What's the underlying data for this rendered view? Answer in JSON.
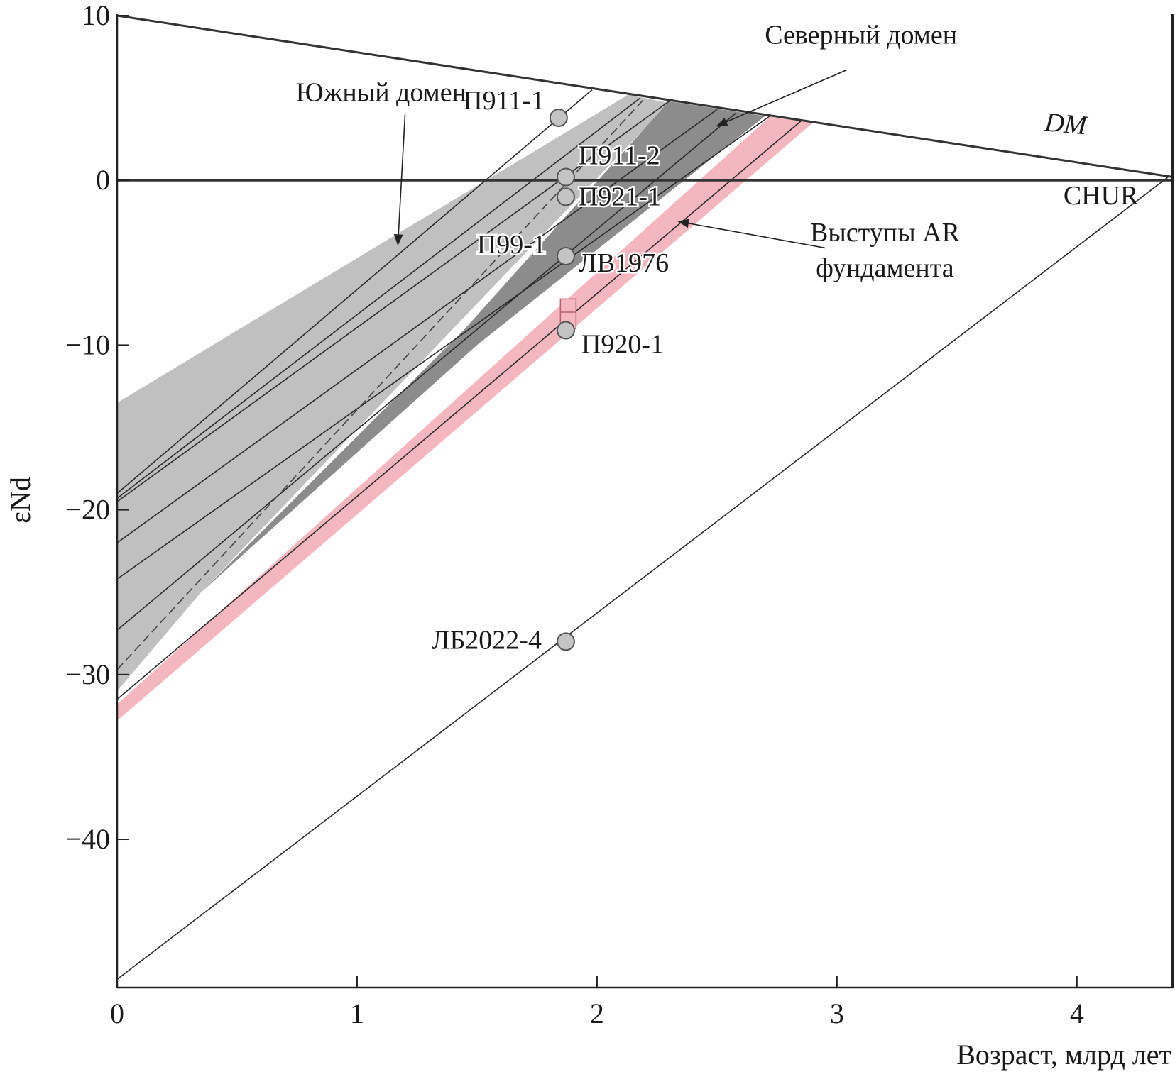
{
  "chart_data": {
    "type": "line",
    "xlabel": "Возраст, млрд лет",
    "ylabel": "εNd",
    "xlim": [
      0,
      4.4
    ],
    "ylim": [
      -49,
      10
    ],
    "x_ticks": [
      {
        "value": 0,
        "label": "0"
      },
      {
        "value": 1,
        "label": "1"
      },
      {
        "value": 2,
        "label": "2"
      },
      {
        "value": 3,
        "label": "3"
      },
      {
        "value": 4,
        "label": "4"
      }
    ],
    "y_ticks": [
      {
        "value": 10,
        "label": "10"
      },
      {
        "value": 0,
        "label": "0"
      },
      {
        "value": -10,
        "label": "−10"
      },
      {
        "value": -20,
        "label": "−20"
      },
      {
        "value": -30,
        "label": "−30"
      },
      {
        "value": -40,
        "label": "−40"
      }
    ],
    "grid": false,
    "reference_lines": [
      {
        "name": "DM",
        "label": "DM",
        "points": [
          [
            0,
            10
          ],
          [
            4.4,
            0.2
          ]
        ]
      },
      {
        "name": "CHUR",
        "label": "CHUR",
        "points": [
          [
            0,
            0
          ],
          [
            4.4,
            0
          ]
        ]
      }
    ],
    "regions": [
      {
        "name": "Южный домен",
        "color": "#c0c0c0",
        "points": [
          [
            0,
            -13.5
          ],
          [
            2.13,
            5.2
          ],
          [
            2.3,
            4.7
          ],
          [
            0.35,
            -25
          ],
          [
            0,
            -31
          ]
        ]
      },
      {
        "name": "Северный домен",
        "color": "#8c8c8c",
        "points": [
          [
            2.3,
            4.8
          ],
          [
            2.7,
            3.9
          ],
          [
            1.5,
            -10
          ],
          [
            0.35,
            -25
          ],
          [
            1.45,
            -9
          ]
        ]
      },
      {
        "name": "Выступы AR фундамента",
        "color": "#f4b7bf",
        "points": [
          [
            2.72,
            3.85
          ],
          [
            2.9,
            3.5
          ],
          [
            0,
            -32.8
          ],
          [
            0,
            -31.8
          ]
        ]
      }
    ],
    "model_lines": [
      [
        [
          0,
          -19
        ],
        [
          1.98,
          5.5
        ]
      ],
      [
        [
          0,
          -19.3
        ],
        [
          2.18,
          5.0
        ]
      ],
      [
        [
          0,
          -19.5
        ],
        [
          2.3,
          4.8
        ]
      ],
      [
        [
          0,
          -22
        ],
        [
          2.5,
          4.3
        ]
      ],
      [
        [
          0,
          -24.2
        ],
        [
          2.72,
          3.9
        ]
      ],
      [
        [
          0,
          -27.3
        ],
        [
          2.58,
          4.1
        ]
      ],
      [
        [
          0,
          -31.5
        ],
        [
          2.85,
          3.6
        ]
      ],
      [
        [
          0,
          -48.5
        ],
        [
          4.38,
          0.2
        ]
      ]
    ],
    "dashed_line": [
      [
        0,
        -29.7
      ],
      [
        2.2,
        5.0
      ]
    ],
    "samples": [
      {
        "label": "П911-1",
        "x": 1.84,
        "y": 3.8
      },
      {
        "label": "П911-2",
        "x": 1.87,
        "y": 0.2
      },
      {
        "label": "П921-1",
        "x": 1.87,
        "y": -1.0
      },
      {
        "label": "П99-1",
        "x": 1.87,
        "y": -4.6
      },
      {
        "label": "ЛВ1976",
        "x": 1.87,
        "y": -4.6
      },
      {
        "label": "П920-1",
        "x": 1.87,
        "y": -9.1
      },
      {
        "label": "ЛБ2022-4",
        "x": 1.87,
        "y": -28.0
      }
    ],
    "square_marker": {
      "x": 1.88,
      "y_top": -7.2,
      "y_mid": -8.0,
      "y_bottom": -9.0
    },
    "annotations": [
      {
        "text": "Южный домен",
        "tx": 1.1,
        "ty": 4.8,
        "arrow_to": [
          1.17,
          -3.9
        ]
      },
      {
        "text": "Северный домен",
        "tx": 3.1,
        "ty": 8.3,
        "arrow_to": [
          2.5,
          3.3
        ]
      },
      {
        "text": "Выступы AR",
        "text2": "фундамента",
        "tx": 3.2,
        "ty": -3.7,
        "arrow_to": [
          2.34,
          -2.5
        ]
      }
    ]
  }
}
